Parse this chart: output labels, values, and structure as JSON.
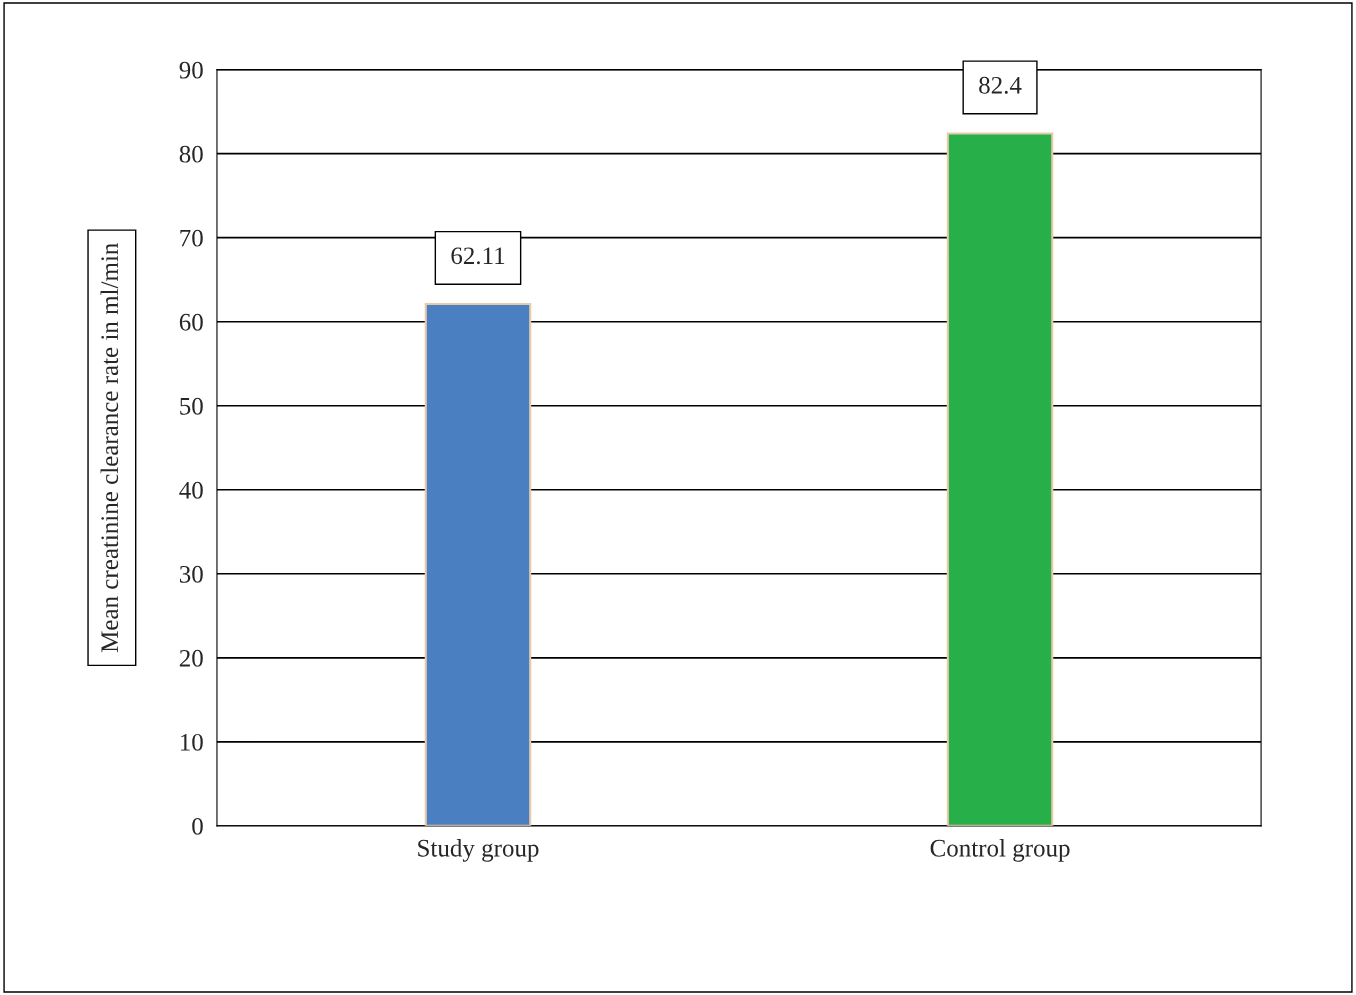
{
  "chart_data": {
    "type": "bar",
    "ylabel": "Mean creatinine clearance rate in ml/min",
    "categories": [
      "Study group",
      "Control group"
    ],
    "series": [
      {
        "values": [
          62.11,
          82.4
        ],
        "colors": [
          "#4a7fc1",
          "#27b04a"
        ]
      }
    ],
    "ylim": [
      0,
      90
    ],
    "yticks": [
      0,
      10,
      20,
      30,
      40,
      50,
      60,
      70,
      80,
      90
    ],
    "grid": "y",
    "data_labels": true,
    "legend": false
  }
}
